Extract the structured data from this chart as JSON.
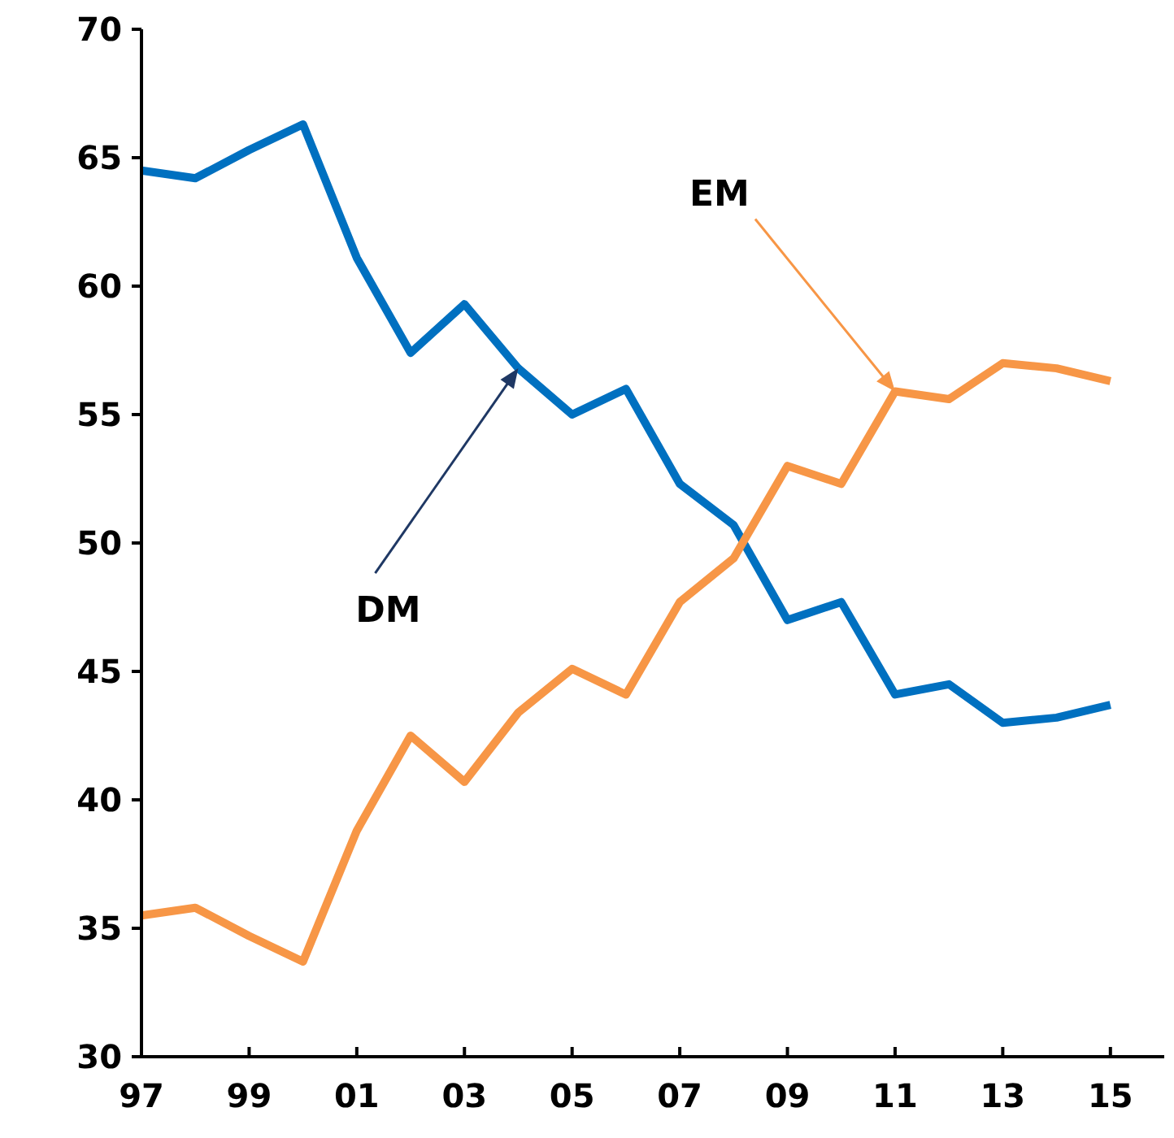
{
  "chart_data": {
    "type": "line",
    "x": [
      1997,
      1998,
      1999,
      2000,
      2001,
      2002,
      2003,
      2004,
      2005,
      2006,
      2007,
      2008,
      2009,
      2010,
      2011,
      2012,
      2013,
      2014,
      2015
    ],
    "series": [
      {
        "color": "#0070c0",
        "values": [
          64.5,
          64.2,
          65.3,
          66.3,
          61.1,
          57.4,
          59.3,
          56.8,
          55.0,
          56.0,
          52.3,
          50.7,
          47.0,
          47.7,
          44.1,
          44.5,
          43.0,
          43.2,
          43.7
        ]
      },
      {
        "color": "#f79646",
        "values": [
          35.5,
          35.8,
          34.7,
          33.7,
          38.8,
          42.5,
          40.7,
          43.4,
          45.1,
          44.1,
          47.7,
          49.4,
          53.0,
          52.3,
          55.9,
          55.6,
          57.0,
          56.8,
          56.3
        ]
      }
    ],
    "xlim": [
      1997,
      2016
    ],
    "xticks": [
      {
        "value": 1997,
        "label": "97"
      },
      {
        "value": 1999,
        "label": "99"
      },
      {
        "value": 2001,
        "label": "01"
      },
      {
        "value": 2003,
        "label": "03"
      },
      {
        "value": 2005,
        "label": "05"
      },
      {
        "value": 2007,
        "label": "07"
      },
      {
        "value": 2009,
        "label": "09"
      },
      {
        "value": 2011,
        "label": "11"
      },
      {
        "value": 2013,
        "label": "13"
      },
      {
        "value": 2015,
        "label": "15"
      }
    ],
    "ylim": [
      30,
      70
    ],
    "yticks": [
      30,
      35,
      40,
      45,
      50,
      55,
      60,
      65,
      70
    ],
    "annotations": [
      {
        "text": "DM",
        "x": 2004,
        "y": 56.8
      },
      {
        "text": "EM",
        "x": 2011,
        "y": 55.9
      }
    ],
    "grid": false,
    "line_style": "solid"
  }
}
